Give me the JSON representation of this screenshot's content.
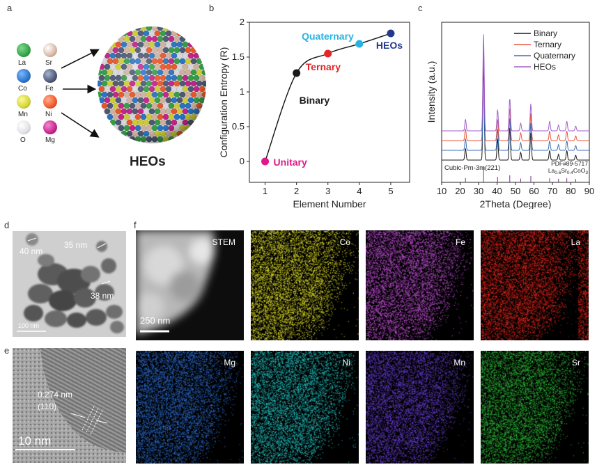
{
  "panels": {
    "a": "a",
    "b": "b",
    "c": "c",
    "d": "d",
    "e": "e",
    "f": "f"
  },
  "panel_a": {
    "elements": [
      {
        "symbol": "La",
        "color": "#37a349"
      },
      {
        "symbol": "Sr",
        "color": "#d9b9a6"
      },
      {
        "symbol": "Co",
        "color": "#2c77c9"
      },
      {
        "symbol": "Fe",
        "color": "#4f5b78"
      },
      {
        "symbol": "Mn",
        "color": "#d7d637"
      },
      {
        "symbol": "Ni",
        "color": "#f2592a"
      },
      {
        "symbol": "O",
        "color": "#e2e2e6"
      },
      {
        "symbol": "Mg",
        "color": "#c9258f"
      }
    ],
    "caption": "HEOs"
  },
  "chart_data": [
    {
      "type": "line",
      "title": "",
      "xlabel": "Element Number",
      "ylabel": "Configuration Entropy (R)",
      "xlim": [
        0.5,
        5.6
      ],
      "ylim": [
        -0.3,
        2.0
      ],
      "x_ticks": [
        "1",
        "2",
        "3",
        "4",
        "5"
      ],
      "y_ticks": [
        "0",
        "0.5",
        "1",
        "1.5",
        "2"
      ],
      "points": [
        {
          "x": 1,
          "y": 0.0,
          "label": "Unitary",
          "color": "#e0198a"
        },
        {
          "x": 2,
          "y": 1.27,
          "label": "Binary",
          "color": "#1a1a1a"
        },
        {
          "x": 3,
          "y": 1.55,
          "label": "Ternary",
          "color": "#e5262a"
        },
        {
          "x": 4,
          "y": 1.69,
          "label": "Quaternary",
          "color": "#27b3e2"
        },
        {
          "x": 5,
          "y": 1.84,
          "label": "HEOs",
          "color": "#233a8c"
        }
      ]
    },
    {
      "type": "line",
      "title": "",
      "xlabel": "2Theta (Degree)",
      "ylabel": "Intensity (a.u.)",
      "xlim": [
        10,
        90
      ],
      "x_ticks": [
        "10",
        "20",
        "30",
        "40",
        "50",
        "60",
        "70",
        "80",
        "90"
      ],
      "series": [
        {
          "name": "Binary",
          "color": "#1a1a1a",
          "offset": 0
        },
        {
          "name": "Ternary",
          "color": "#e8553b",
          "offset": 2
        },
        {
          "name": "Quaternary",
          "color": "#3b6fb8",
          "offset": 1
        },
        {
          "name": "HEOs",
          "color": "#a35ec9",
          "offset": 3
        }
      ],
      "peaks_2theta": [
        22.9,
        32.7,
        40.3,
        46.9,
        52.8,
        58.3,
        68.5,
        73.3,
        77.8,
        82.6
      ],
      "reference": {
        "phase": "Cubic-Pm-3m(221)",
        "pdf": "PDF#89-5717",
        "formula_main": "La",
        "formula_sub1": "0.6",
        "formula_mid": "Sr",
        "formula_sub2": "0.4",
        "formula_end": "CoO",
        "formula_sub3": "3"
      }
    }
  ],
  "panel_d": {
    "labels": [
      "40 nm",
      "35 nm",
      "38 nm"
    ],
    "scale": "100 nm"
  },
  "panel_e": {
    "spacing": "0.274 nm",
    "plane": "(110)",
    "scale": "10 nm"
  },
  "panel_f": {
    "scale": "250 nm",
    "maps": [
      {
        "label": "STEM",
        "color": "#c8c8c8"
      },
      {
        "label": "Co",
        "color": "#e4e22a"
      },
      {
        "label": "Fe",
        "color": "#c350d8"
      },
      {
        "label": "La",
        "color": "#e8261c"
      },
      {
        "label": "Mg",
        "color": "#2f6fd2"
      },
      {
        "label": "Ni",
        "color": "#26c7c7"
      },
      {
        "label": "Mn",
        "color": "#6a3fd4"
      },
      {
        "label": "Sr",
        "color": "#2fbf3a"
      }
    ]
  }
}
